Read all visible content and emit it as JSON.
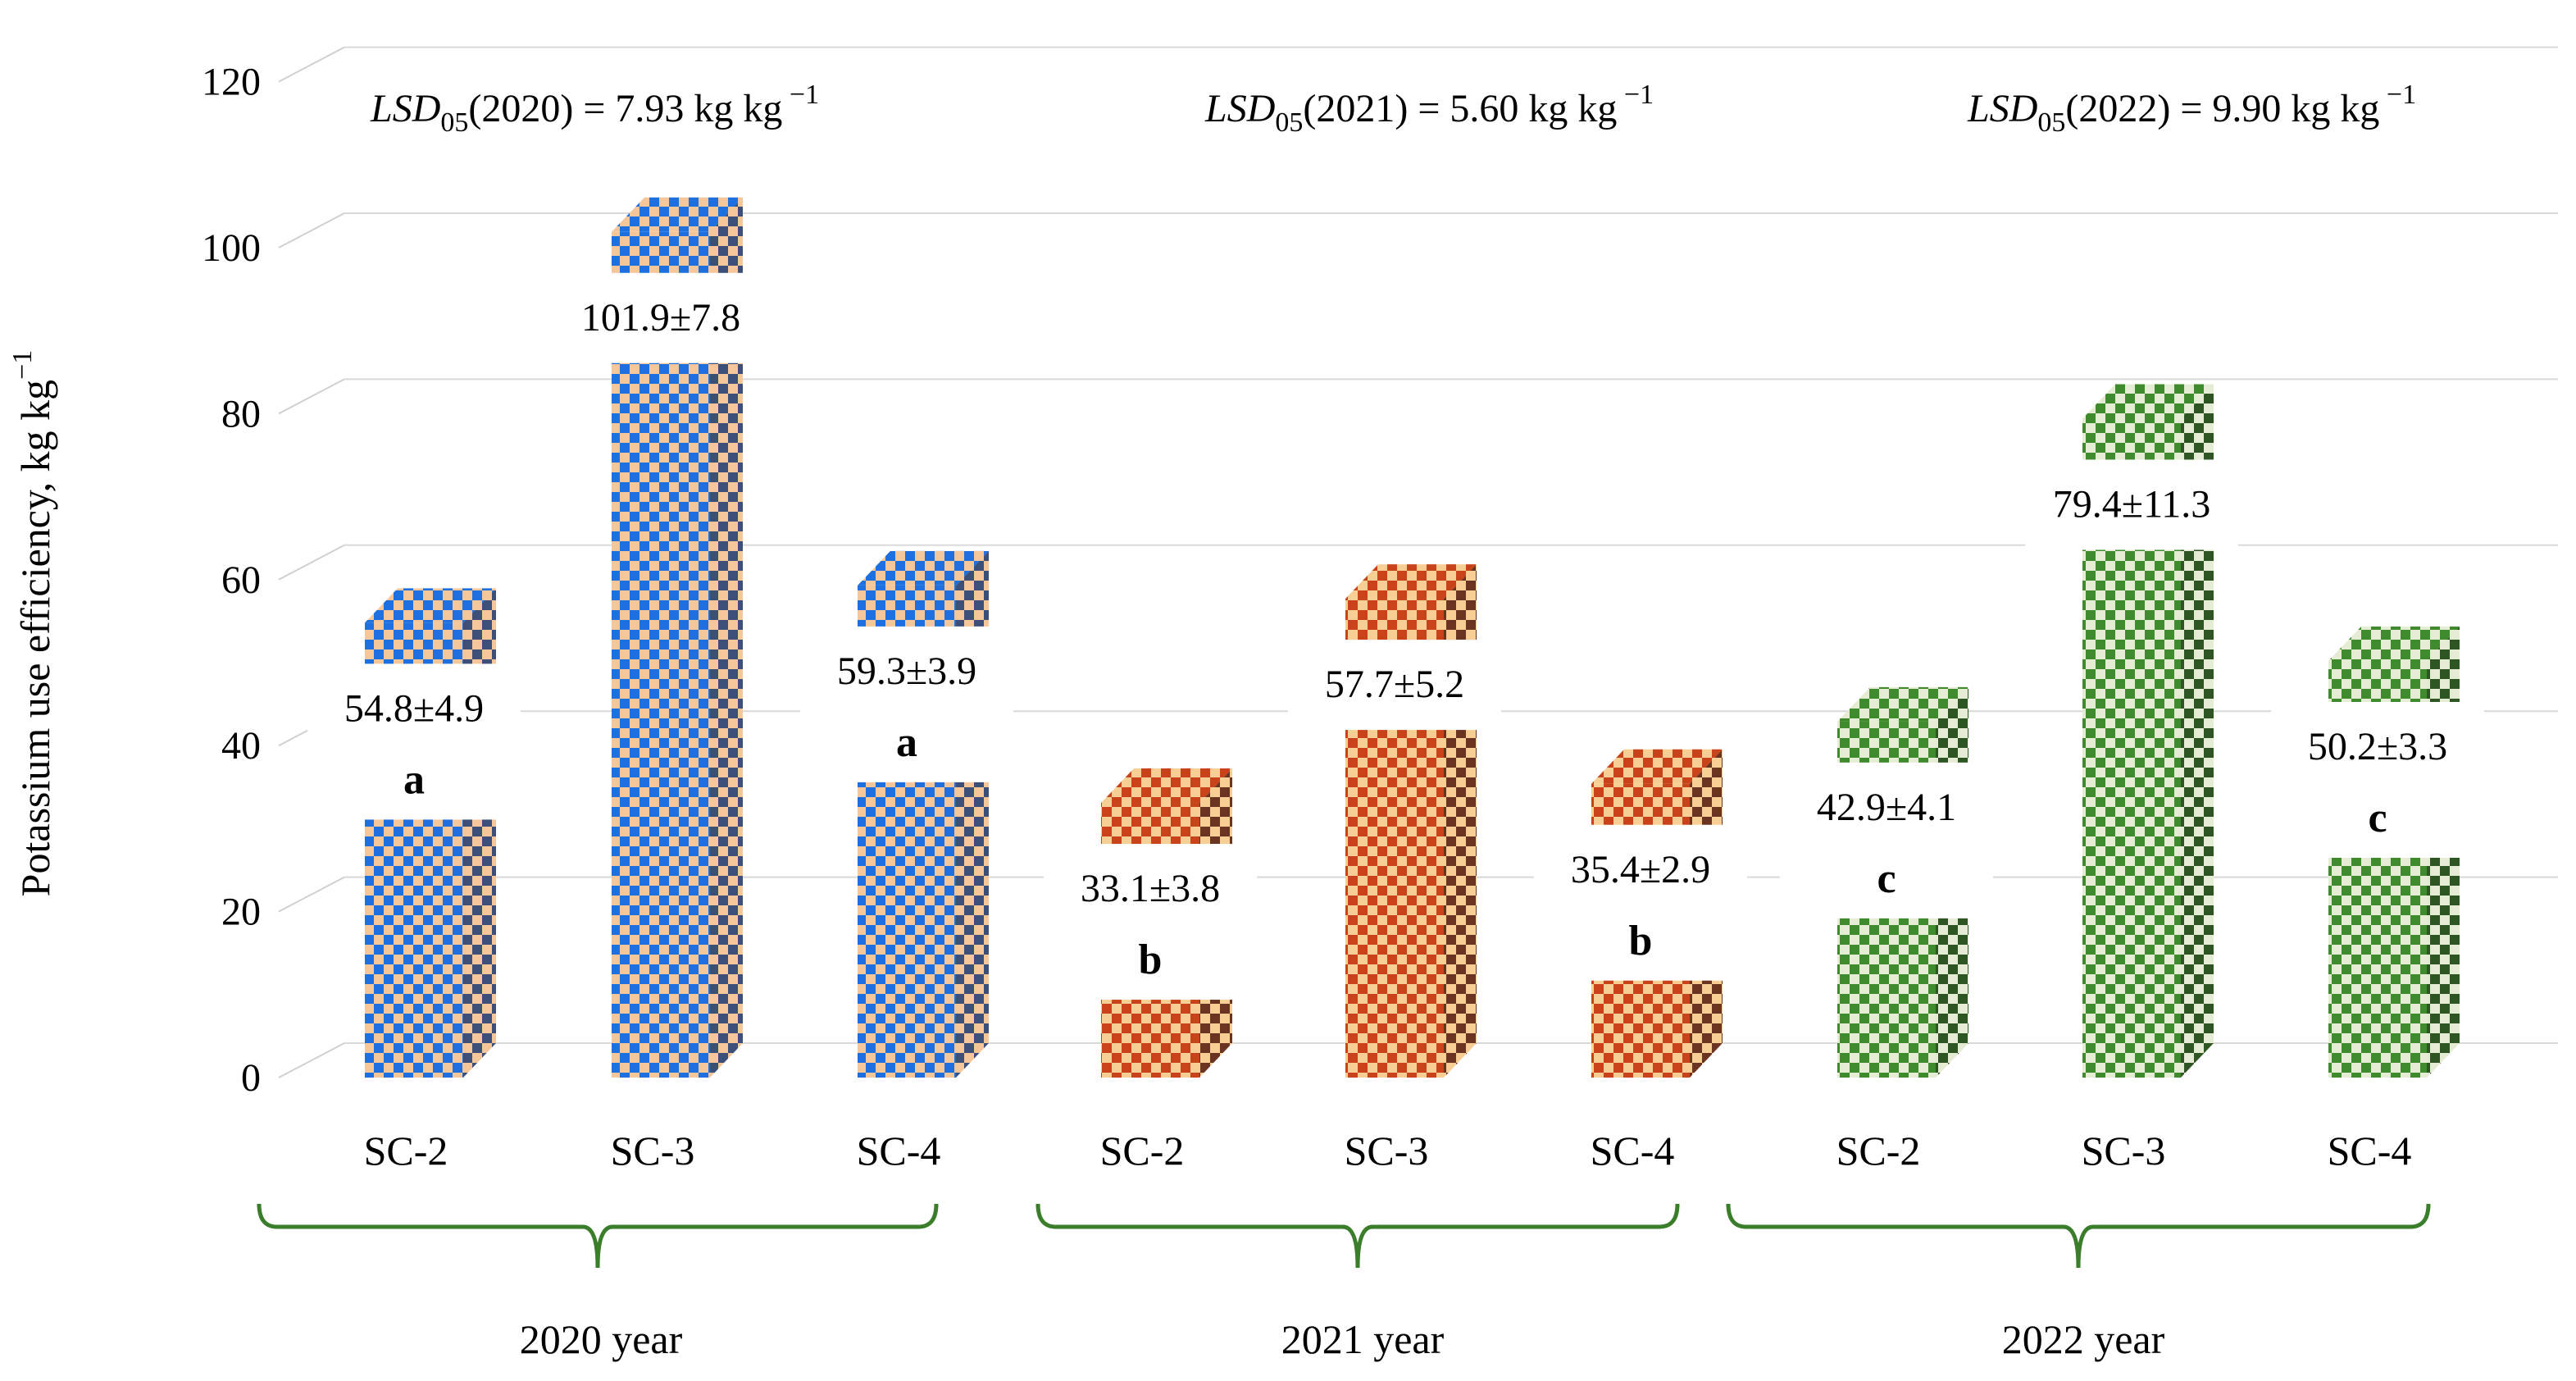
{
  "chart_data": {
    "type": "bar",
    "ylabel": "Potassium use efficiency,  kg kg",
    "ylabel_sup": "−1",
    "ylim": [
      0,
      120
    ],
    "yticks": [
      "0",
      "20",
      "40",
      "60",
      "80",
      "100",
      "120"
    ],
    "grid": true,
    "categories": [
      "SC-2",
      "SC-3",
      "SC-4",
      "SC-2",
      "SC-3",
      "SC-4",
      "SC-2",
      "SC-3",
      "SC-4"
    ],
    "groups": [
      {
        "label": "2020 year",
        "color": "#1e6fe0",
        "color_light": "#f4c69a",
        "color_dark": "#3b4f78",
        "lsd_label": "LSD",
        "lsd_sub": "05",
        "lsd_text": "(2020) = 7.93 kg kg",
        "lsd_sup": "−1",
        "bars": [
          {
            "category": "SC-2",
            "value": 54.8,
            "label": "54.8±4.9",
            "letter": "a"
          },
          {
            "category": "SC-3",
            "value": 101.9,
            "label": "101.9±7.8",
            "letter": ""
          },
          {
            "category": "SC-4",
            "value": 59.3,
            "label": "59.3±3.9",
            "letter": "a"
          }
        ]
      },
      {
        "label": "2021 year",
        "color": "#c8431a",
        "color_light": "#f7cf94",
        "color_dark": "#6b3420",
        "lsd_label": "LSD",
        "lsd_sub": "05",
        "lsd_text": "(2021) = 5.60 kg kg",
        "lsd_sup": "−1",
        "bars": [
          {
            "category": "SC-2",
            "value": 33.1,
            "label": "33.1±3.8",
            "letter": "b"
          },
          {
            "category": "SC-3",
            "value": 57.7,
            "label": "57.7±5.2",
            "letter": ""
          },
          {
            "category": "SC-4",
            "value": 35.4,
            "label": "35.4±2.9",
            "letter": "b"
          }
        ]
      },
      {
        "label": "2022 year",
        "color": "#3f8a2c",
        "color_light": "#e4ecd4",
        "color_dark": "#2f5524",
        "lsd_label": "LSD",
        "lsd_sub": "05",
        "lsd_text": "(2022) = 9.90  kg kg",
        "lsd_sup": "−1",
        "bars": [
          {
            "category": "SC-2",
            "value": 42.9,
            "label": "42.9±4.1",
            "letter": "c"
          },
          {
            "category": "SC-3",
            "value": 79.4,
            "label": "79.4±11.3",
            "letter": ""
          },
          {
            "category": "SC-4",
            "value": 50.2,
            "label": "50.2±3.3",
            "letter": "c"
          }
        ]
      }
    ],
    "bracket_color": "#3a7d2a"
  }
}
